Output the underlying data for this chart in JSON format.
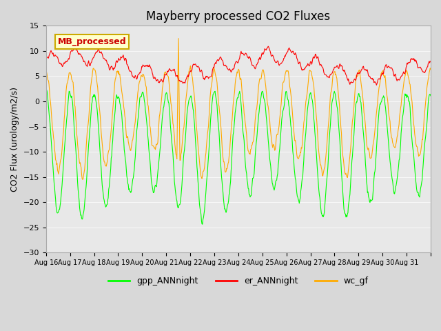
{
  "title": "Mayberry processed CO2 Fluxes",
  "ylabel": "CO2 Flux (urology/m2/s)",
  "ylim": [
    -30,
    15
  ],
  "yticks": [
    -30,
    -25,
    -20,
    -15,
    -10,
    -5,
    0,
    5,
    10,
    15
  ],
  "bg_color": "#e8e8e8",
  "plot_bg": "#f0f0f0",
  "legend_label": "MB_processed",
  "legend_bg": "#ffffcc",
  "legend_edge": "#ccaa00",
  "legend_text_color": "#cc0000",
  "line_colors": {
    "gpp": "#00ff00",
    "er": "#ff0000",
    "wc": "#ffaa00"
  },
  "xticklabels": [
    "Aug 16",
    "Aug 17",
    "Aug 18",
    "Aug 19",
    "Aug 20",
    "Aug 21",
    "Aug 22",
    "Aug 23",
    "Aug 24",
    "Aug 25",
    "Aug 26",
    "Aug 27",
    "Aug 28",
    "Aug 29",
    "Aug 30",
    "Aug 31"
  ],
  "n_days": 16,
  "pts_per_day": 48
}
